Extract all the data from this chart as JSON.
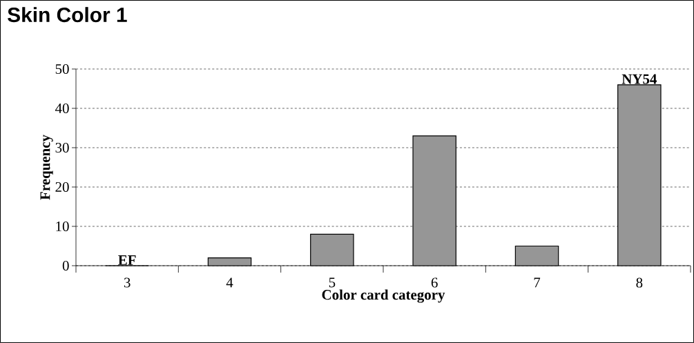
{
  "chart_data": {
    "type": "bar",
    "title": "Skin Color 1",
    "xlabel": "Color card category",
    "ylabel": "Frequency",
    "categories": [
      "3",
      "4",
      "5",
      "6",
      "7",
      "8"
    ],
    "values": [
      0,
      2,
      8,
      33,
      5,
      46
    ],
    "color": "#969696",
    "ylim": [
      0,
      50
    ],
    "yticks": [
      0,
      10,
      20,
      30,
      40,
      50
    ],
    "grid": "y",
    "annotations": [
      {
        "text": "EF",
        "x": "3",
        "y": 0
      },
      {
        "text": "NY54",
        "x": "8",
        "y": 46
      }
    ]
  }
}
